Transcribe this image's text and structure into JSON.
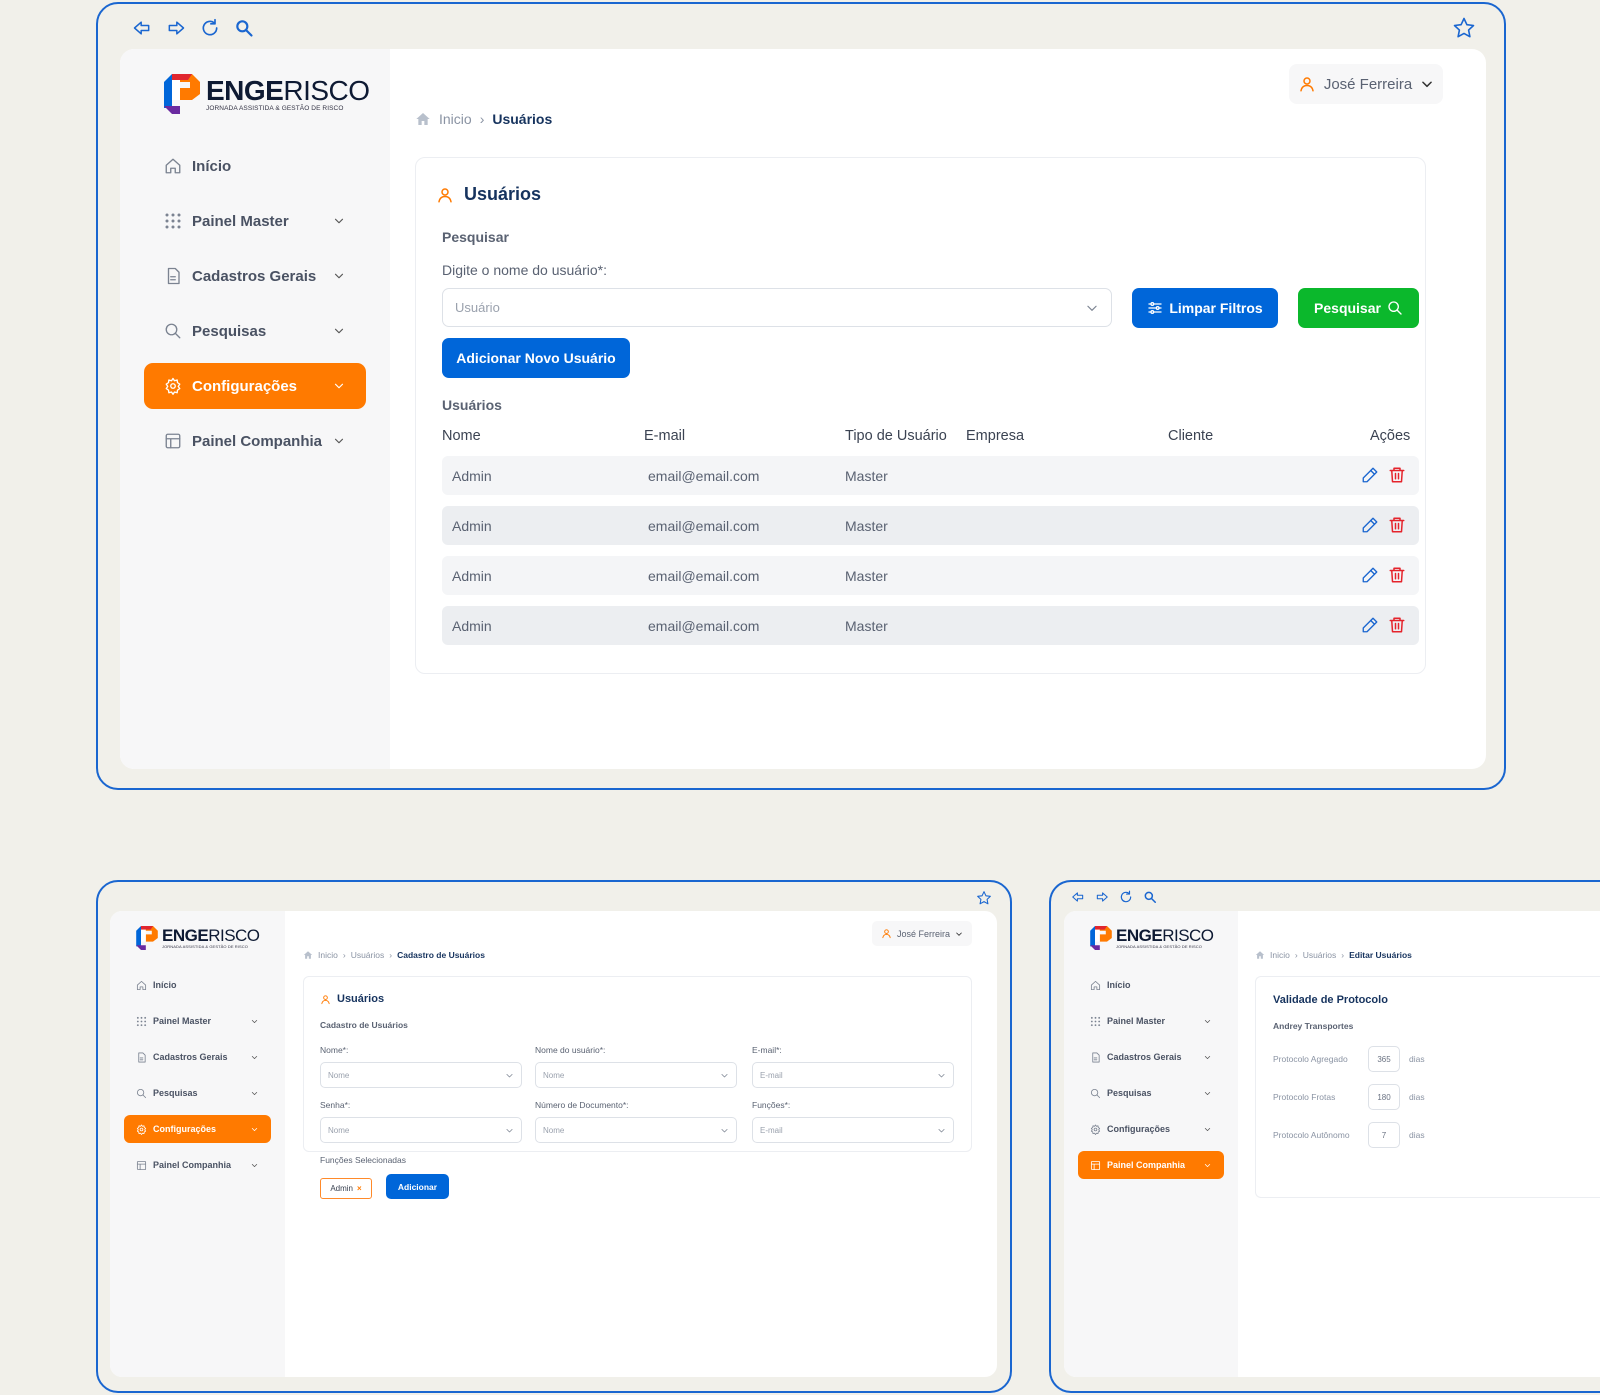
{
  "brand": {
    "name_bold": "ENGE",
    "name_light": "RISCO",
    "tagline": "JORNADA ASSISTIDA & GESTÃO DE RISCO"
  },
  "colors": {
    "accent": "#ff7a00",
    "primary": "#0066d9",
    "success": "#0bb82c",
    "danger": "#e5232b",
    "frame": "#1a66d0"
  },
  "sidebar_items": [
    {
      "label": "Início",
      "icon": "home-icon",
      "chevron": false
    },
    {
      "label": "Painel Master",
      "icon": "grid-icon",
      "chevron": true
    },
    {
      "label": "Cadastros Gerais",
      "icon": "file-icon",
      "chevron": true
    },
    {
      "label": "Pesquisas",
      "icon": "search-icon",
      "chevron": true
    },
    {
      "label": "Configurações",
      "icon": "gear-icon",
      "chevron": true
    },
    {
      "label": "Painel Companhia",
      "icon": "layout-icon",
      "chevron": true
    }
  ],
  "user": {
    "name": "José Ferreira"
  },
  "main": {
    "active_nav": 4,
    "breadcrumb": [
      "Inicio",
      "Usuários"
    ],
    "card_title": "Usuários",
    "search_section": "Pesquisar",
    "search_label": "Digite o nome do usuário*:",
    "search_placeholder": "Usuário",
    "clear_filters": "Limpar Filtros",
    "search_button": "Pesquisar",
    "add_user": "Adicionar Novo Usuário",
    "table_title": "Usuários",
    "columns": [
      "Nome",
      "E-mail",
      "Tipo de Usuário",
      "Empresa",
      "Cliente",
      "Ações"
    ],
    "rows": [
      {
        "nome": "Admin",
        "email": "email@email.com",
        "tipo": "Master",
        "empresa": "",
        "cliente": ""
      },
      {
        "nome": "Admin",
        "email": "email@email.com",
        "tipo": "Master",
        "empresa": "",
        "cliente": ""
      },
      {
        "nome": "Admin",
        "email": "email@email.com",
        "tipo": "Master",
        "empresa": "",
        "cliente": ""
      },
      {
        "nome": "Admin",
        "email": "email@email.com",
        "tipo": "Master",
        "empresa": "",
        "cliente": ""
      }
    ]
  },
  "cadastro": {
    "active_nav": 4,
    "breadcrumb": [
      "Inicio",
      "Usuários",
      "Cadastro de Usuários"
    ],
    "card_title": "Usuários",
    "subtitle": "Cadastro de Usuários",
    "fields": [
      {
        "label": "Nome*:",
        "placeholder": "Nome"
      },
      {
        "label": "Nome do usuário*:",
        "placeholder": "Nome"
      },
      {
        "label": "E-mail*:",
        "placeholder": "E-mail"
      },
      {
        "label": "Senha*:",
        "placeholder": "Nome"
      },
      {
        "label": "Número de Documento*:",
        "placeholder": "Nome"
      },
      {
        "label": "Funções*:",
        "placeholder": "E-mail"
      }
    ],
    "selected_label": "Funções Selecionadas",
    "chip": "Admin",
    "add_button": "Adicionar"
  },
  "editar": {
    "active_nav": 5,
    "breadcrumb": [
      "Inicio",
      "Usuários",
      "Editar Usuários"
    ],
    "card_title": "Validade de Protocolo",
    "company": "Andrey Transportes",
    "protocols": [
      {
        "label": "Protocolo Agregado",
        "value": "365",
        "unit": "dias"
      },
      {
        "label": "Protocolo Frotas",
        "value": "180",
        "unit": "dias"
      },
      {
        "label": "Protocolo Autônomo",
        "value": "7",
        "unit": "dias"
      }
    ]
  }
}
